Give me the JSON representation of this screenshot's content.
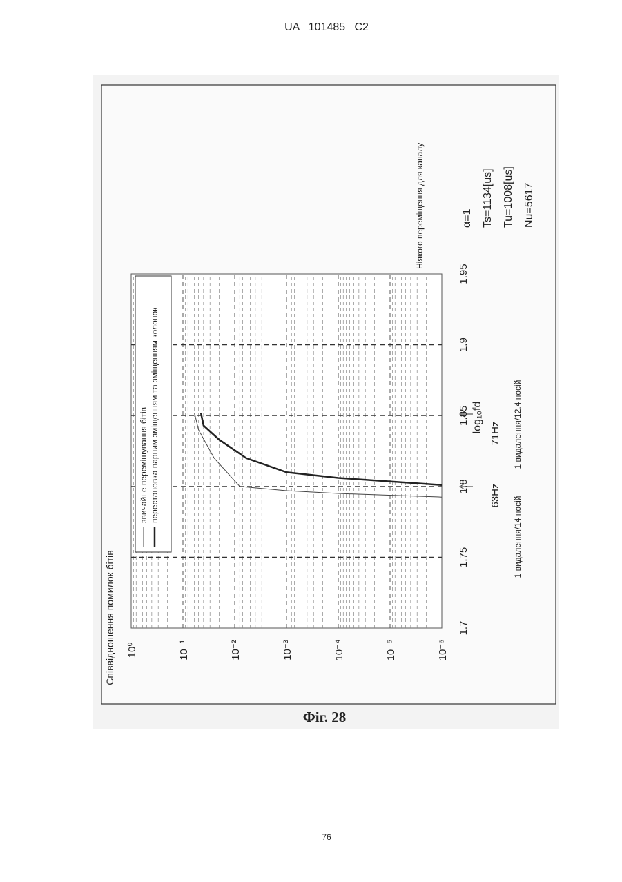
{
  "header": {
    "patent": "UA   101485   C2"
  },
  "figure_caption": "Фіг. 28",
  "page_number": "76",
  "chart_data": {
    "type": "line",
    "x_label": "log₁₀fd",
    "y_label": "Співвідношення помилок бітів",
    "xlim": [
      1.7,
      1.95
    ],
    "xticks": [
      1.7,
      1.75,
      1.8,
      1.85,
      1.9,
      1.95
    ],
    "ylim": [
      1e-06,
      1
    ],
    "y_log": true,
    "yticks": [
      {
        "value": 1,
        "label": "10⁰"
      },
      {
        "value": 0.1,
        "label": "10⁻¹"
      },
      {
        "value": 0.01,
        "label": "10⁻²"
      },
      {
        "value": 0.001,
        "label": "10⁻³"
      },
      {
        "value": 0.0001,
        "label": "10⁻⁴"
      },
      {
        "value": 1e-05,
        "label": "10⁻⁵"
      },
      {
        "value": 1e-06,
        "label": "10⁻⁶"
      }
    ],
    "grid": true,
    "minor_grid": true,
    "series": [
      {
        "name": "звичайне перемішування бітів",
        "color": "#444444",
        "line_width": 1,
        "x": [
          1.7925,
          1.795,
          1.797,
          1.8,
          1.82,
          1.84,
          1.852
        ],
        "values": [
          1e-06,
          0.0001,
          0.001,
          0.008,
          0.025,
          0.05,
          0.06
        ]
      },
      {
        "name": "перестановка парним зміщенням та зміщенням колонок",
        "color": "#222222",
        "line_width": 2.5,
        "x": [
          1.801,
          1.806,
          1.81,
          1.82,
          1.833,
          1.843,
          1.852
        ],
        "values": [
          1e-06,
          0.0001,
          0.001,
          0.006,
          0.02,
          0.04,
          0.045
        ]
      }
    ],
    "annotations": [
      "Ніякого переміщення для каналу",
      "63Hz",
      "71Hz",
      "1 видалення/14 носій",
      "1 видалення/12.4 носій"
    ],
    "parameters": [
      "α=1",
      "Ts=1134[us]",
      "Tu=1008[us]",
      "Nu=5617"
    ]
  }
}
